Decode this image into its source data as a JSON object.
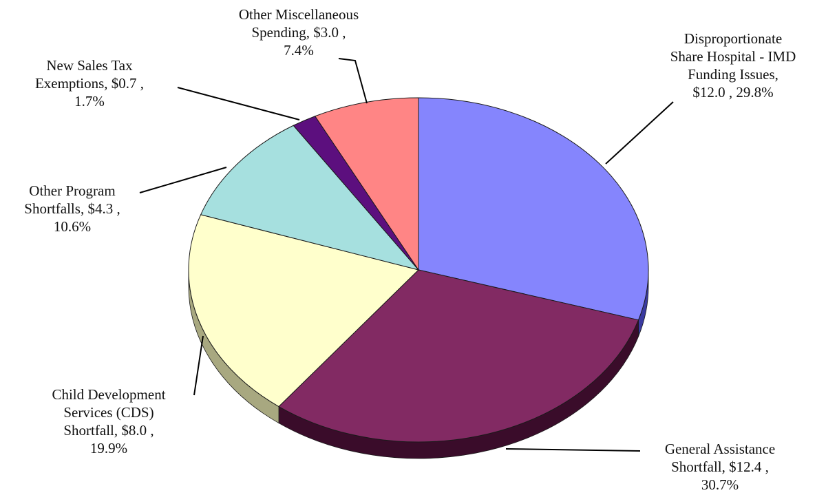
{
  "chart_data": {
    "type": "pie",
    "units": "$",
    "legend": "none",
    "slices": [
      {
        "label": "Disproportionate Share Hospital - IMD Funding Issues",
        "value": 12.0,
        "percent": 29.8,
        "color": "#8585fd",
        "side_color": "#3a3aa0",
        "label_lines": [
          "Disproportionate",
          "Share Hospital - IMD",
          "Funding Issues,",
          "$12.0 , 29.8%"
        ]
      },
      {
        "label": "General Assistance Shortfall",
        "value": 12.4,
        "percent": 30.7,
        "color": "#822a63",
        "side_color": "#3a0c2a",
        "label_lines": [
          "General Assistance",
          "Shortfall, $12.4 ,",
          "30.7%"
        ]
      },
      {
        "label": "Child Development Services (CDS) Shortfall",
        "value": 8.0,
        "percent": 19.9,
        "color": "#ffffcc",
        "side_color": "#a8a880",
        "label_lines": [
          "Child Development",
          "Services (CDS)",
          "Shortfall, $8.0 ,",
          "19.9%"
        ]
      },
      {
        "label": "Other Program Shortfalls",
        "value": 4.3,
        "percent": 10.6,
        "color": "#a6e0df",
        "side_color": "#5e8e8d",
        "label_lines": [
          "Other Program",
          "Shortfalls, $4.3 ,",
          "10.6%"
        ]
      },
      {
        "label": "New Sales Tax Exemptions",
        "value": 0.7,
        "percent": 1.7,
        "color": "#5c0f7e",
        "side_color": "#2b0540",
        "label_lines": [
          "New Sales Tax",
          "Exemptions, $0.7 ,",
          "1.7%"
        ]
      },
      {
        "label": "Other Miscellaneous Spending",
        "value": 3.0,
        "percent": 7.4,
        "color": "#ff8585",
        "side_color": "#a04848",
        "label_lines": [
          "Other Miscellaneous",
          "Spending, $3.0 ,",
          "7.4%"
        ]
      }
    ]
  }
}
